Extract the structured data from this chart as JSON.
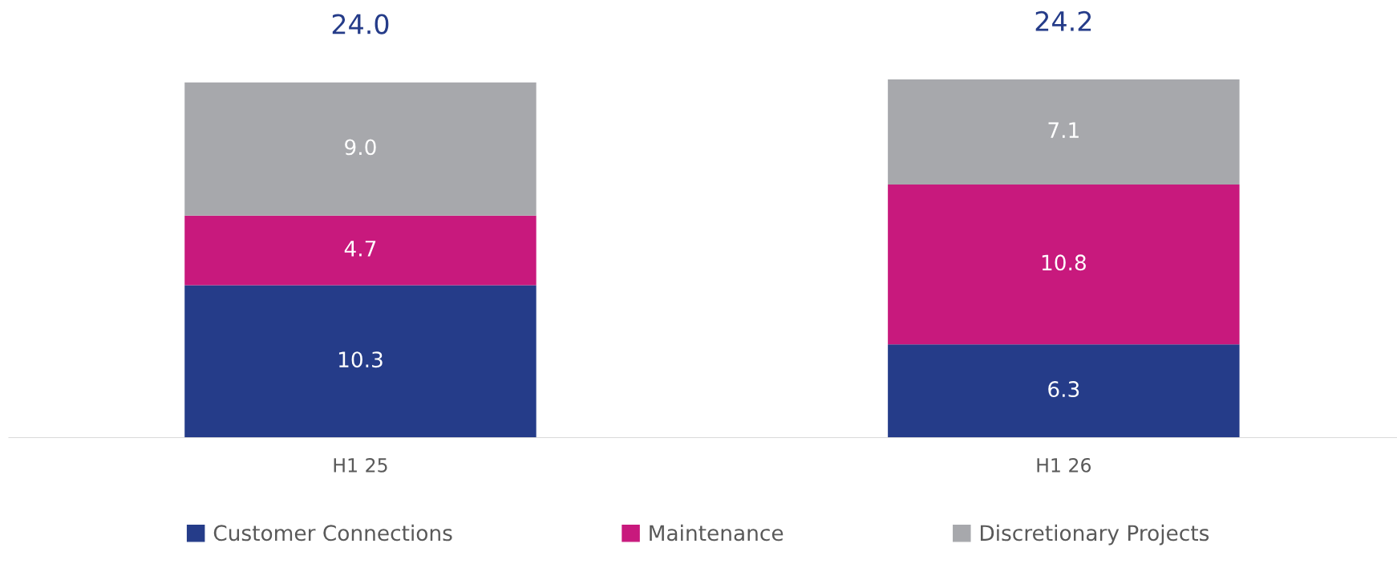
{
  "chart_data": {
    "type": "bar",
    "stacked": true,
    "categories": [
      "H1 25",
      "H1 26"
    ],
    "series": [
      {
        "name": "Customer Connections",
        "color": "#253c89",
        "values": [
          10.3,
          6.3
        ],
        "value_labels": [
          "10.3",
          "6.3"
        ]
      },
      {
        "name": "Maintenance",
        "color": "#c8197d",
        "values": [
          4.7,
          10.8
        ],
        "value_labels": [
          "4.7",
          "10.8"
        ]
      },
      {
        "name": "Discretionary Projects",
        "color": "#a7a8ac",
        "values": [
          9.0,
          7.1
        ],
        "value_labels": [
          "9.0",
          "7.1"
        ]
      }
    ],
    "totals": [
      "24.0",
      "24.2"
    ],
    "legend": "bottom",
    "grid": false
  }
}
